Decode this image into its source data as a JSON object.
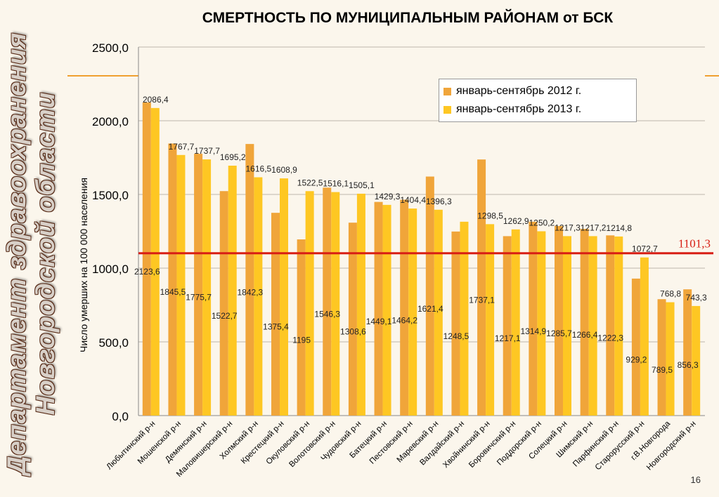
{
  "side_title": {
    "line1": "Департамент здравоохранения",
    "line2": "Новгородской области"
  },
  "slide_title": "СМЕРТНОСТЬ ПО МУНИЦИПАЛЬНЫМ РАЙОНАМ от БСК",
  "page_number": "16",
  "colors": {
    "series_2012": "#f0a53a",
    "series_2013": "#fec723",
    "reference_line": "#d81e14",
    "accent_line": "#f0a030"
  },
  "chart_data": {
    "type": "bar",
    "title": "СМЕРТНОСТЬ ПО МУНИЦИПАЛЬНЫМ РАЙОНАМ от БСК",
    "ylabel": "Число умерших на 100 000 населения",
    "xlabel": "",
    "ylim": [
      0,
      2500
    ],
    "yticks": [
      "0,0",
      "500,0",
      "1000,0",
      "1500,0",
      "2000,0",
      "2500,0"
    ],
    "grid": true,
    "legend_position": "top-right",
    "categories": [
      "Любытинский р-н",
      "Мошенской р-н",
      "Демянский р-н",
      "Маловишерский р-н",
      "Холмский р-н",
      "Крестецкий р-н",
      "Окуловский р-н",
      "Волотовский р-н",
      "Чудовский р-н",
      "Батецкий р-н",
      "Пестовский р-н",
      "Маревский р-н",
      "Валдайский р-н",
      "Хвойнинский р-н",
      "Боровичский р-н",
      "Поддорский р-н",
      "Солецкий р-н",
      "Шимский р-н",
      "Парфинский р-н",
      "Старорусский р-н",
      "г.В.Новгорода",
      "Новгородский р-н"
    ],
    "series": [
      {
        "name": "январь-сентябрь 2012 г.",
        "values": [
          2123.6,
          1845.5,
          1775.7,
          1522.7,
          1842.3,
          1375.4,
          1195,
          1546.3,
          1308.6,
          1449.1,
          1464.2,
          1621.4,
          1248.5,
          1737.1,
          1217.1,
          1314.9,
          1285.7,
          1266.4,
          1222.3,
          929.2,
          789.5,
          856.3
        ],
        "labels": [
          "2123,6",
          "1845,5",
          "1775,7",
          "1522,7",
          "1842,3",
          "1375,4",
          "1195",
          "1546,3",
          "1308,6",
          "1449,1",
          "1464,2",
          "1621,4",
          "1248,5",
          "1737,1",
          "1217,1",
          "1314,9",
          "1285,7",
          "1266,4",
          "1222,3",
          "929,2",
          "789,5",
          "856,3"
        ]
      },
      {
        "name": "январь-сентябрь 2013 г.",
        "values": [
          2086.4,
          1767.7,
          1737.7,
          1695.2,
          1616.5,
          1608.9,
          1522.5,
          1516.1,
          1505.1,
          1429.3,
          1404.4,
          1396.3,
          1315,
          1298.5,
          1262.9,
          1250.2,
          1217.3,
          1217.2,
          1214.8,
          1072.7,
          768.8,
          743.3
        ],
        "labels": [
          "2086,4",
          "1767,7",
          "1737,7",
          "1695,2",
          "1616,5",
          "1608,9",
          "1522,5",
          "1516,1",
          "1505,1",
          "1429,3",
          "1404,4",
          "1396,3",
          "",
          "1298,5",
          "1262,9",
          "1250,2",
          "1217,3",
          "1217,2",
          "1214,8",
          "1072,7",
          "768,8",
          "743,3"
        ]
      }
    ],
    "reference_line": {
      "value": 1101.3,
      "label": "1101,3"
    }
  }
}
